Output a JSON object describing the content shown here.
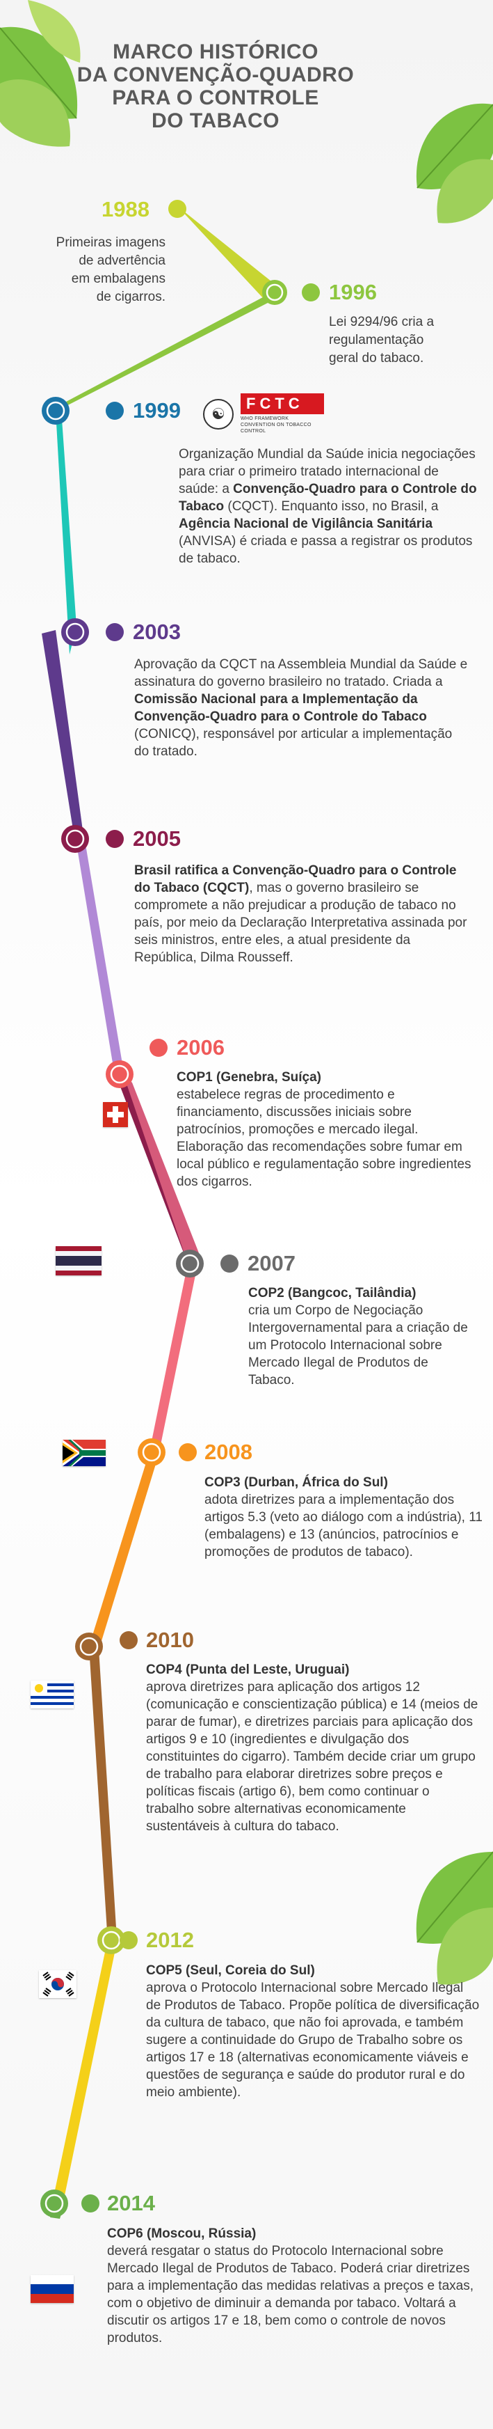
{
  "title": {
    "line1": "MARCO HISTÓRICO",
    "line2": "DA CONVENÇÃO-QUADRO",
    "line3": "PARA O CONTROLE",
    "line4": "DO TABACO"
  },
  "colors": {
    "1988": "#c7d531",
    "1996": "#8dc63f",
    "1999": "#1b75a8",
    "2003": "#5e3a8c",
    "2005": "#8c1d4b",
    "2006": "#ef5a5a",
    "2007": "#6b6b6b",
    "2008": "#f7941d",
    "2010": "#a0652f",
    "2012": "#b5c93a",
    "2014": "#6bb04a",
    "ribbon_teal": "#1ec7b7",
    "ribbon_violet": "#b189d6",
    "ribbon_pink": "#f26d7d"
  },
  "events": [
    {
      "year": "1988",
      "lines": [
        "Primeiras imagens",
        "de advertência",
        "em embalagens",
        "de cigarros."
      ]
    },
    {
      "year": "1996",
      "lines": [
        "Lei 9294/96 cria a",
        "regulamentação",
        "geral do tabaco."
      ]
    },
    {
      "year": "1999",
      "logo_text": "FCTC",
      "logo_sub": "WHO FRAMEWORK CONVENTION ON TOBACCO CONTROL",
      "icon": "who-globe-icon",
      "parts": [
        "Organização Mundial da Saúde inicia negociações para criar o primeiro tratado internacional de saúde: a ",
        "Convenção-Quadro para o Controle do Tabaco",
        " (CQCT). Enquanto isso, no Brasil, a ",
        "Agência Nacional de Vigilância Sanitária",
        " (ANVISA) é criada e passa a registrar os produtos de tabaco."
      ]
    },
    {
      "year": "2003",
      "parts": [
        "Aprovação da CQCT na Assembleia Mundial da Saúde e assinatura do governo brasileiro no tratado. Criada a ",
        "Comissão Nacional para a Implementação da Convenção-Quadro para o Controle do Tabaco",
        " (CONICQ), responsável por articular a implementação do tratado."
      ]
    },
    {
      "year": "2005",
      "parts": [
        "Brasil ratifica a Convenção-Quadro para o Controle do Tabaco (CQCT)",
        ", mas o governo brasileiro se compromete a não prejudicar a produção de tabaco no país, por meio da Declaração Interpretativa assinada por seis ministros, entre eles, a atual presidente da República, Dilma Rousseff."
      ]
    },
    {
      "year": "2006",
      "heading": "COP1 (Genebra, Suíça)",
      "body": "estabelece regras de procedimento e financiamento, discussões iniciais sobre patrocínios, promoções e mercado ilegal. Elaboração das recomendações sobre fumar em local público e regulamentação sobre ingredientes dos cigarros.",
      "flag": "switzerland-flag"
    },
    {
      "year": "2007",
      "heading": "COP2 (Bangcoc, Tailândia)",
      "body": "cria um Corpo de Negociação Intergovernamental para a criação de um Protocolo Internacional sobre Mercado Ilegal de Produtos de Tabaco.",
      "flag": "thailand-flag"
    },
    {
      "year": "2008",
      "heading": "COP3 (Durban, África do Sul)",
      "body": "adota diretrizes para a implementação dos artigos 5.3 (veto ao diálogo com a indústria), 11 (embalagens) e 13 (anúncios, patrocínios e promoções de produtos de tabaco).",
      "flag": "south-africa-flag"
    },
    {
      "year": "2010",
      "heading": "COP4 (Punta del Leste, Uruguai)",
      "body": "aprova diretrizes para aplicação dos artigos 12 (comunicação e conscientização pública) e 14 (meios de parar de fumar), e diretrizes parciais para aplicação dos artigos 9 e 10 (ingredientes e divulgação dos constituintes do cigarro). Também decide criar um grupo de trabalho para elaborar diretrizes sobre preços e políticas fiscais (artigo 6), bem como continuar o trabalho sobre alternativas economicamente sustentáveis à cultura do tabaco.",
      "flag": "uruguay-flag"
    },
    {
      "year": "2012",
      "heading": "COP5 (Seul, Coreia do Sul)",
      "body": "aprova o Protocolo Internacional sobre Mercado Ilegal de Produtos de Tabaco. Propõe política de diversificação da cultura de tabaco, que não foi aprovada, e também sugere a continuidade do Grupo de Trabalho sobre os artigos 17 e 18 (alternativas economicamente viáveis e questões de segurança e saúde do produtor rural e do meio ambiente).",
      "flag": "south-korea-flag"
    },
    {
      "year": "2014",
      "heading": "COP6 (Moscou, Rússia)",
      "body": "deverá resgatar o status do Protocolo Internacional sobre Mercado Ilegal de Produtos de Tabaco. Poderá criar diretrizes para a implementação das medidas relativas a preços e taxas, com o objetivo de diminuir a demanda por tabaco. Voltará a discutir os artigos 17 e 18, bem como o controle de novos produtos.",
      "flag": "russia-flag"
    }
  ]
}
